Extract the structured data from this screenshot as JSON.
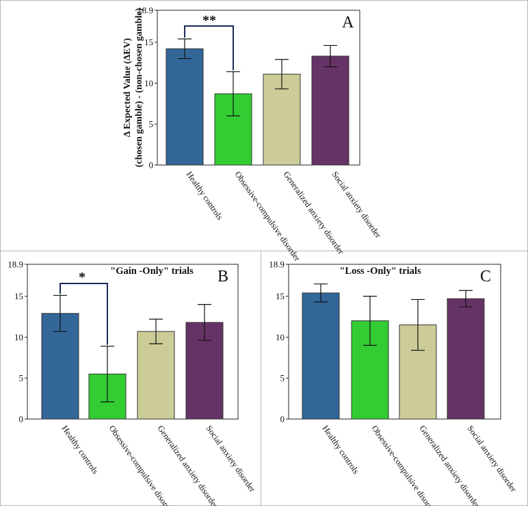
{
  "categories": [
    "Healthy controls",
    "Obsessive-compulsive disorder",
    "Generalized anxiety disorder",
    "Social anxiety disorder"
  ],
  "colors": [
    "#336699",
    "#33cc33",
    "#cccc99",
    "#663366"
  ],
  "chart_data": [
    {
      "id": "A",
      "type": "bar",
      "panel_letter": "A",
      "title": "",
      "ylabel_line1": "Δ Expected Value  (ΔEV)",
      "ylabel_line2": "(chosen gamble) - (non-chosen gamble)",
      "ylim": [
        0,
        18.9
      ],
      "yticks": [
        0,
        5,
        10,
        15,
        18.9
      ],
      "yticklabels": [
        "0",
        "5",
        "10",
        "15",
        "18.9"
      ],
      "values": [
        14.2,
        8.7,
        11.1,
        13.3
      ],
      "errors": [
        1.2,
        2.7,
        1.8,
        1.3
      ],
      "significance": {
        "from": 0,
        "to": 1,
        "label": "**"
      }
    },
    {
      "id": "B",
      "type": "bar",
      "panel_letter": "B",
      "title": "\"Gain -Only\" trials",
      "ylim": [
        0,
        18.9
      ],
      "yticks": [
        0,
        5,
        10,
        15,
        18.9
      ],
      "yticklabels": [
        "0",
        "5",
        "10",
        "15",
        "18.9"
      ],
      "values": [
        12.9,
        5.5,
        10.7,
        11.8
      ],
      "errors": [
        2.2,
        3.4,
        1.5,
        2.2
      ],
      "significance": {
        "from": 0,
        "to": 1,
        "label": "*"
      }
    },
    {
      "id": "C",
      "type": "bar",
      "panel_letter": "C",
      "title": "\"Loss -Only\" trials",
      "ylim": [
        0,
        18.9
      ],
      "yticks": [
        0,
        5,
        10,
        15,
        18.9
      ],
      "yticklabels": [
        "0",
        "5",
        "10",
        "15",
        "18.9"
      ],
      "values": [
        15.4,
        12.0,
        11.5,
        14.7
      ],
      "errors": [
        1.1,
        3.0,
        3.1,
        1.0
      ],
      "significance": null
    }
  ]
}
